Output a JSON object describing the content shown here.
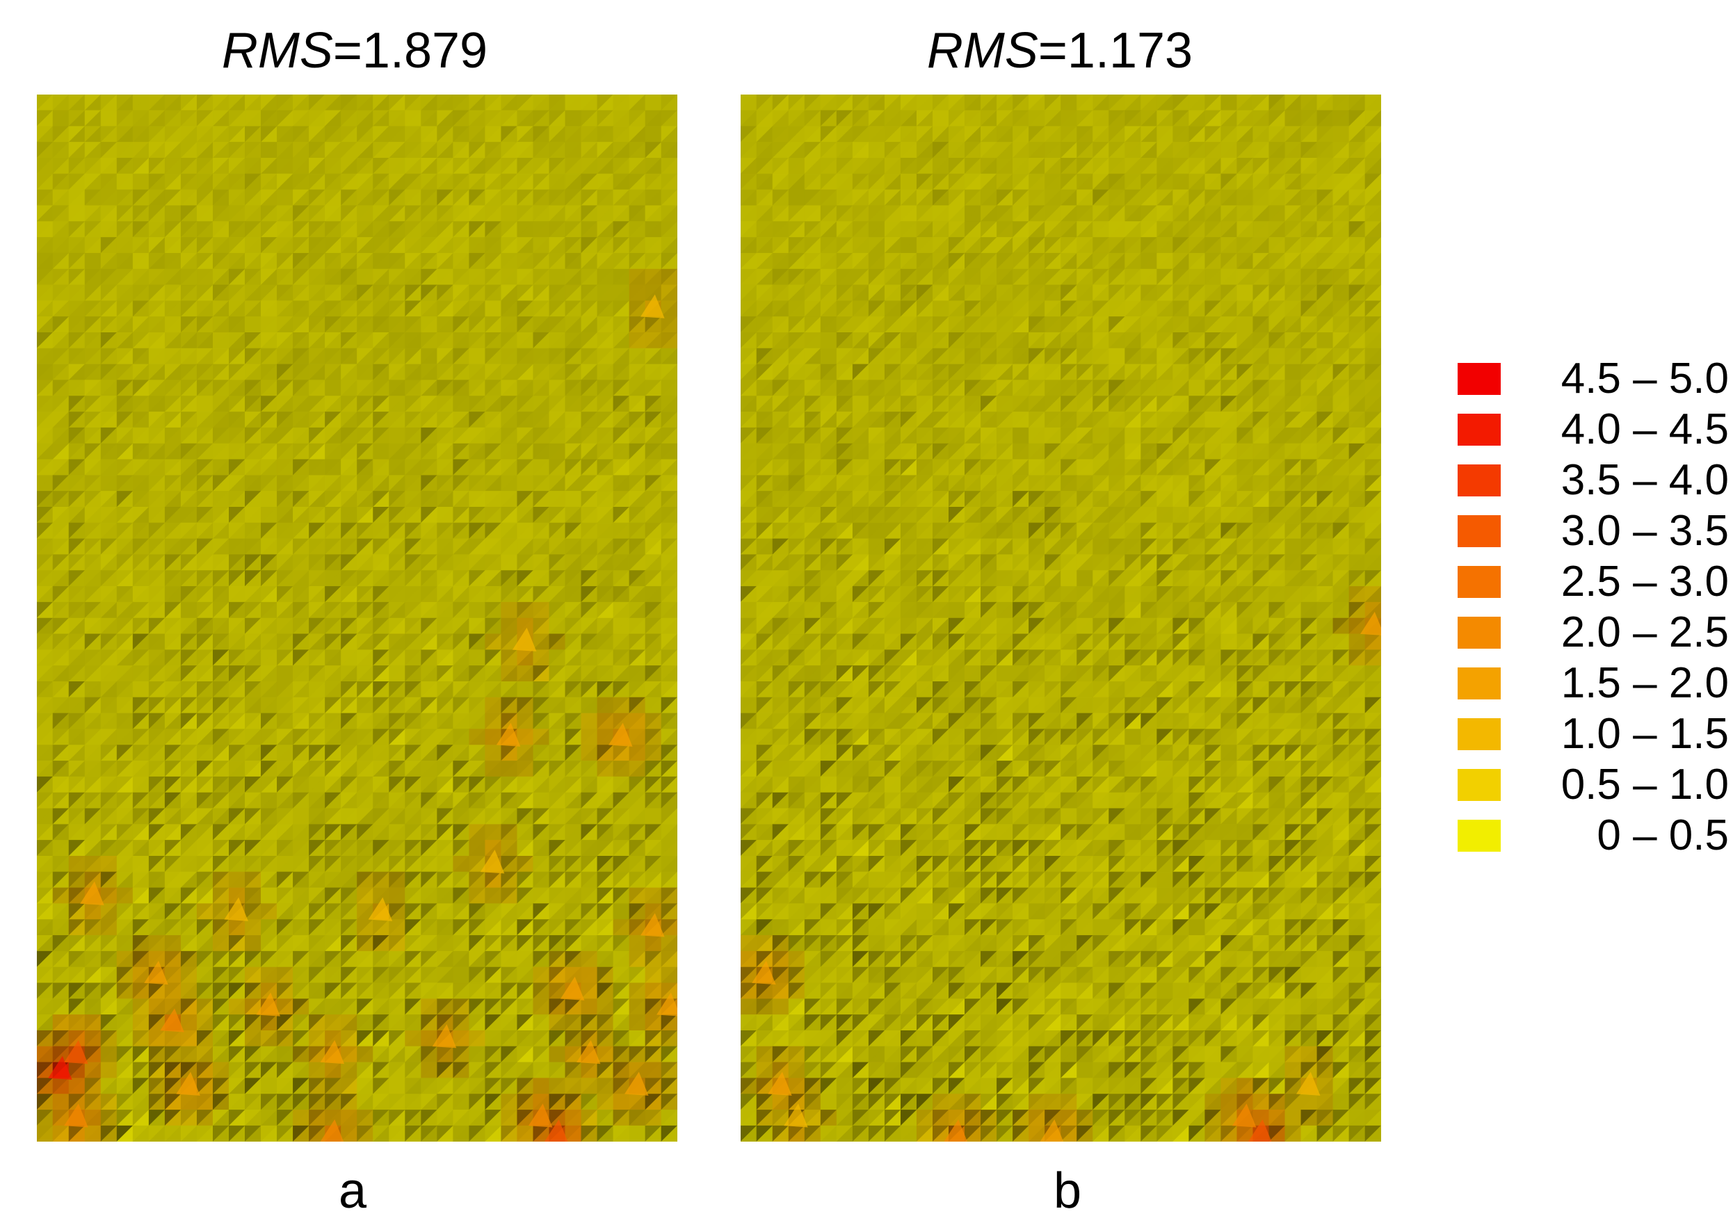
{
  "chart_data": [
    {
      "type": "heatmap",
      "panel": "a",
      "rms_var": "RMS",
      "rms_value": "=1.879",
      "label": "a",
      "grid": {
        "cols": 40,
        "rows": 66
      },
      "base_class": "0 – 0.5",
      "max_class": "4.5 – 5.0",
      "hotspots": [
        {
          "col": 1,
          "row": 61,
          "value": 4.2
        },
        {
          "col": 2,
          "row": 60,
          "value": 3.4
        },
        {
          "col": 2,
          "row": 64,
          "value": 2.4
        },
        {
          "col": 3,
          "row": 50,
          "value": 1.6
        },
        {
          "col": 7,
          "row": 55,
          "value": 1.8
        },
        {
          "col": 8,
          "row": 58,
          "value": 2.0
        },
        {
          "col": 9,
          "row": 62,
          "value": 1.8
        },
        {
          "col": 12,
          "row": 51,
          "value": 1.4
        },
        {
          "col": 14,
          "row": 57,
          "value": 1.6
        },
        {
          "col": 18,
          "row": 60,
          "value": 1.6
        },
        {
          "col": 18,
          "row": 65,
          "value": 2.0
        },
        {
          "col": 21,
          "row": 51,
          "value": 1.2
        },
        {
          "col": 25,
          "row": 59,
          "value": 1.6
        },
        {
          "col": 28,
          "row": 48,
          "value": 1.4
        },
        {
          "col": 29,
          "row": 40,
          "value": 1.6
        },
        {
          "col": 30,
          "row": 34,
          "value": 1.4
        },
        {
          "col": 31,
          "row": 64,
          "value": 2.4
        },
        {
          "col": 32,
          "row": 65,
          "value": 3.2
        },
        {
          "col": 33,
          "row": 56,
          "value": 1.8
        },
        {
          "col": 34,
          "row": 60,
          "value": 1.6
        },
        {
          "col": 36,
          "row": 40,
          "value": 1.8
        },
        {
          "col": 37,
          "row": 62,
          "value": 1.8
        },
        {
          "col": 38,
          "row": 52,
          "value": 1.6
        },
        {
          "col": 39,
          "row": 57,
          "value": 1.8
        },
        {
          "col": 38,
          "row": 13,
          "value": 1.2
        }
      ]
    },
    {
      "type": "heatmap",
      "panel": "b",
      "rms_var": "RMS",
      "rms_value": "=1.173",
      "label": "b",
      "grid": {
        "cols": 40,
        "rows": 66
      },
      "base_class": "0 – 0.5",
      "max_class": "4.5 – 5.0",
      "hotspots": [
        {
          "col": 1,
          "row": 55,
          "value": 1.8
        },
        {
          "col": 2,
          "row": 62,
          "value": 1.6
        },
        {
          "col": 3,
          "row": 64,
          "value": 1.4
        },
        {
          "col": 13,
          "row": 65,
          "value": 2.0
        },
        {
          "col": 19,
          "row": 65,
          "value": 1.8
        },
        {
          "col": 31,
          "row": 64,
          "value": 2.2
        },
        {
          "col": 32,
          "row": 65,
          "value": 3.2
        },
        {
          "col": 35,
          "row": 62,
          "value": 1.2
        },
        {
          "col": 39,
          "row": 33,
          "value": 1.6
        }
      ]
    }
  ],
  "legend": {
    "items": [
      {
        "label": "4.5 – 5.0",
        "color": "#f20000"
      },
      {
        "label": "4.0 – 4.5",
        "color": "#f31a00"
      },
      {
        "label": "3.5 – 4.0",
        "color": "#f43a00"
      },
      {
        "label": "3.0 – 3.5",
        "color": "#f55a00"
      },
      {
        "label": "2.5 – 3.0",
        "color": "#f57200"
      },
      {
        "label": "2.0 – 2.5",
        "color": "#f48a00"
      },
      {
        "label": "1.5 – 2.0",
        "color": "#f4a200"
      },
      {
        "label": "1.0 – 1.5",
        "color": "#f3b800"
      },
      {
        "label": "0.5 – 1.0",
        "color": "#f2d000"
      },
      {
        "label": "0 – 0.5",
        "color": "#f2ee00"
      }
    ]
  }
}
